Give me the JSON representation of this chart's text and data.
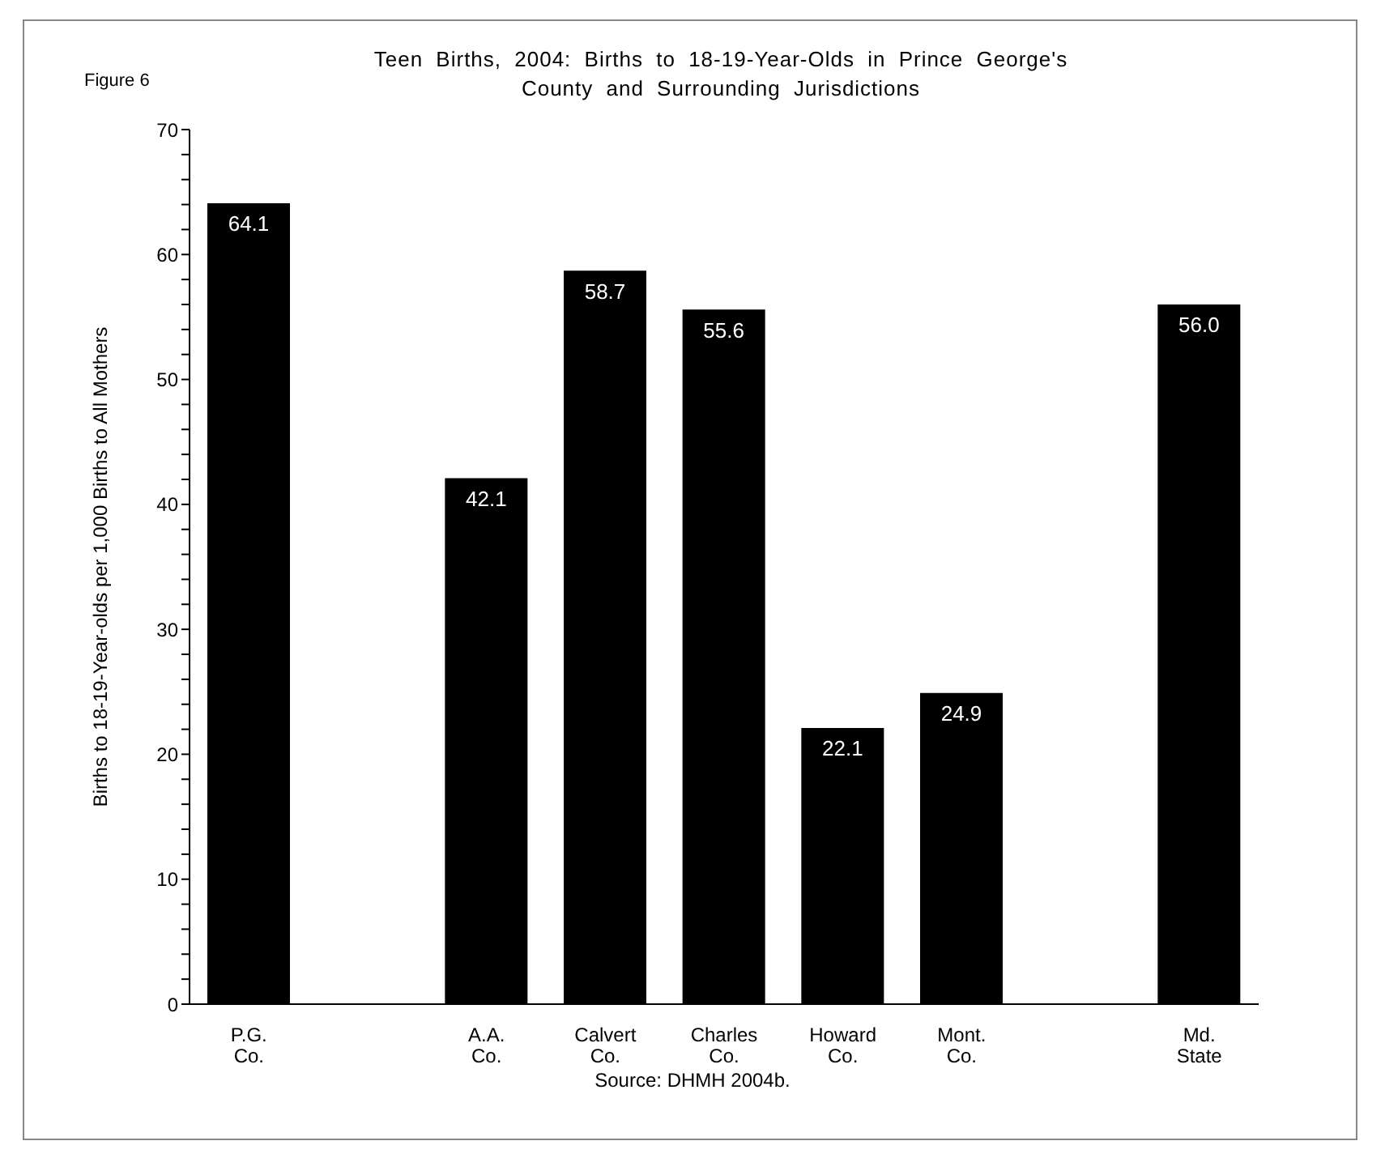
{
  "chart_data": {
    "type": "bar",
    "title": "Teen Births, 2004: Births to 18-19-Year-Olds in Prince George's County and Surrounding Jurisdictions",
    "ylabel": "Births to 18-19-Year-olds per 1,000 Births to All Mothers",
    "annotations": [
      "Figure 6",
      "Source: DHMH 2004b."
    ],
    "categories": [
      "P.G. Co.",
      null,
      "A.A. Co.",
      "Calvert Co.",
      "Charles Co.",
      "Howard Co.",
      "Mont. Co.",
      null,
      "Md. State"
    ],
    "values": [
      64.1,
      null,
      42.1,
      58.7,
      55.6,
      22.1,
      24.9,
      null,
      56.0
    ],
    "value_labels": [
      "64.1",
      null,
      "42.1",
      "58.7",
      "55.6",
      "22.1",
      "24.9",
      null,
      "56.0"
    ],
    "color": "#000000",
    "ylim": [
      0,
      70
    ],
    "yticks": [
      0,
      {
        "value": 2,
        "label": null
      },
      {
        "value": 4,
        "label": null
      },
      {
        "value": 6,
        "label": null
      },
      {
        "value": 8,
        "label": null
      },
      10,
      {
        "value": 12,
        "label": null
      },
      {
        "value": 14,
        "label": null
      },
      {
        "value": 16,
        "label": null
      },
      {
        "value": 18,
        "label": null
      },
      20,
      {
        "value": 22,
        "label": null
      },
      {
        "value": 24,
        "label": null
      },
      {
        "value": 26,
        "label": null
      },
      {
        "value": 28,
        "label": null
      },
      30,
      {
        "value": 32,
        "label": null
      },
      {
        "value": 34,
        "label": null
      },
      {
        "value": 36,
        "label": null
      },
      {
        "value": 38,
        "label": null
      },
      40,
      {
        "value": 42,
        "label": null
      },
      {
        "value": 44,
        "label": null
      },
      {
        "value": 46,
        "label": null
      },
      {
        "value": 48,
        "label": null
      },
      50,
      {
        "value": 52,
        "label": null
      },
      {
        "value": 54,
        "label": null
      },
      {
        "value": 56,
        "label": null
      },
      {
        "value": 58,
        "label": null
      },
      60,
      {
        "value": 62,
        "label": null
      },
      {
        "value": 64,
        "label": null
      },
      {
        "value": 66,
        "label": null
      },
      {
        "value": 68,
        "label": null
      },
      70
    ],
    "grid": false,
    "legend": false
  }
}
